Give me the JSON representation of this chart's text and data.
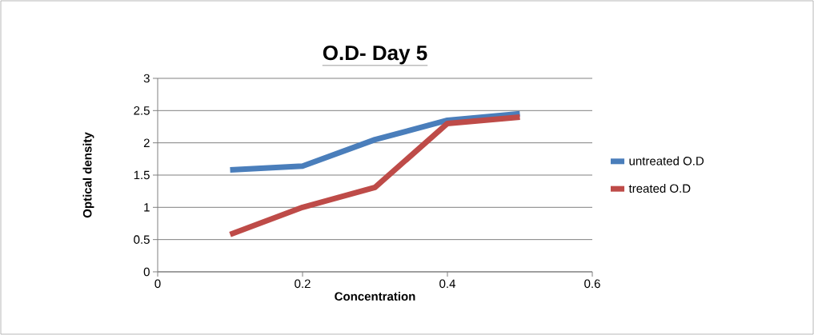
{
  "chart_data": {
    "type": "line",
    "title": "O.D- Day 5",
    "xlabel": "Concentration",
    "ylabel": "Optical density",
    "x": [
      0.1,
      0.2,
      0.3,
      0.4,
      0.5
    ],
    "series": [
      {
        "name": "untreated O.D",
        "color": "#4a7ebb",
        "values": [
          1.58,
          1.64,
          2.05,
          2.35,
          2.45
        ]
      },
      {
        "name": "treated O.D",
        "color": "#be4b48",
        "values": [
          0.58,
          1.0,
          1.31,
          2.3,
          2.4
        ]
      }
    ],
    "xlim": [
      0,
      0.6
    ],
    "xticks": [
      0,
      0.2,
      0.4,
      0.6
    ],
    "ylim": [
      0,
      3
    ],
    "yticks": [
      0,
      0.5,
      1,
      1.5,
      2,
      2.5,
      3
    ],
    "grid": "y",
    "legend": "right",
    "marker": "none",
    "line_style": "solid"
  }
}
